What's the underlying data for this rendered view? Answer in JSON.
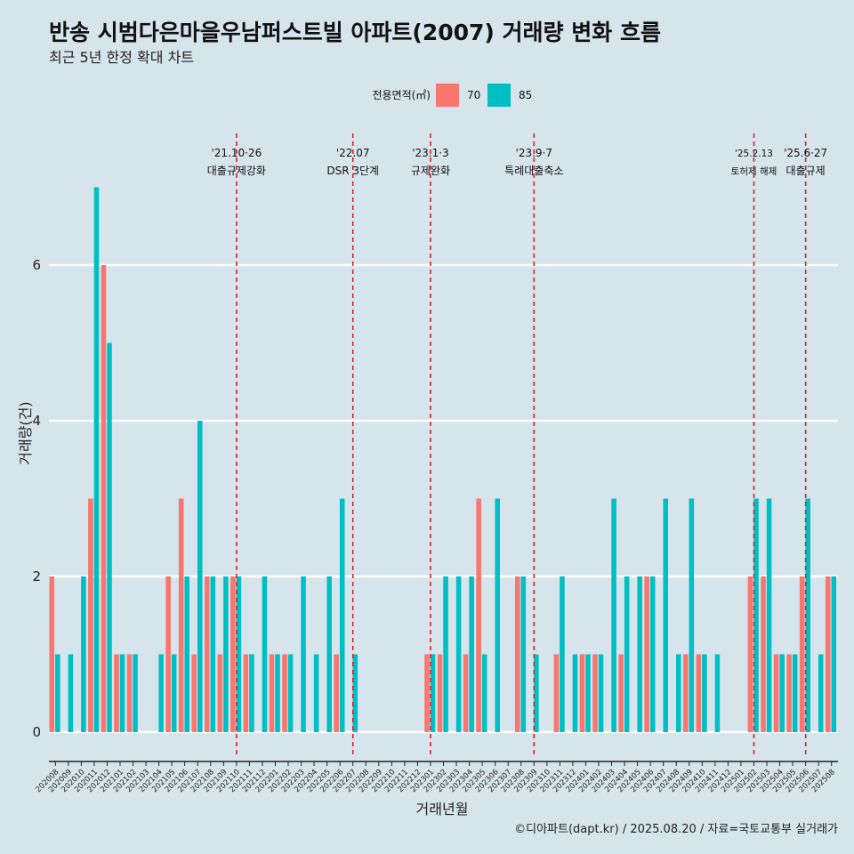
{
  "title": "반송 시범다은마을우남퍼스트빌 아파트(2007) 거래량 변화 흐름",
  "subtitle": "최근 5년 한정 확대 차트",
  "caption": "©디아파트(dapt.kr) / 2025.08.20 / 자료=국토교통부 실거래가",
  "colors": {
    "series_70": "#f8766d",
    "series_85": "#00bfc4",
    "vline": "#e8121b",
    "grid": "#ffffff",
    "background": "#d6e4ec"
  },
  "chart_data": {
    "type": "bar",
    "xlabel": "거래년월",
    "ylabel": "거래량(건)",
    "ylim": [
      -0.3,
      7.6
    ],
    "yticks": [
      0,
      2,
      4,
      6
    ],
    "grid": true,
    "legend": {
      "title": "전용면적(㎡)",
      "position": "top"
    },
    "categories": [
      "202008",
      "202009",
      "202010",
      "202011",
      "202012",
      "202101",
      "202102",
      "202103",
      "202104",
      "202105",
      "202106",
      "202107",
      "202108",
      "202109",
      "202110",
      "202111",
      "202112",
      "202201",
      "202202",
      "202203",
      "202204",
      "202205",
      "202206",
      "202207",
      "202208",
      "202209",
      "202210",
      "202211",
      "202212",
      "202301",
      "202302",
      "202303",
      "202304",
      "202305",
      "202306",
      "202307",
      "202308",
      "202309",
      "202310",
      "202311",
      "202312",
      "202401",
      "202402",
      "202403",
      "202404",
      "202405",
      "202406",
      "202407",
      "202408",
      "202409",
      "202410",
      "202411",
      "202412",
      "202501",
      "202502",
      "202503",
      "202504",
      "202505",
      "202506",
      "202507",
      "202508"
    ],
    "series": [
      {
        "name": "70",
        "values": [
          2,
          0,
          0,
          3,
          6,
          1,
          1,
          0,
          0,
          2,
          3,
          1,
          2,
          1,
          2,
          1,
          0,
          1,
          1,
          0,
          0,
          0,
          1,
          0,
          0,
          0,
          0,
          0,
          0,
          1,
          1,
          0,
          1,
          3,
          0,
          0,
          2,
          0,
          0,
          1,
          0,
          1,
          1,
          0,
          1,
          0,
          2,
          0,
          0,
          1,
          1,
          0,
          0,
          0,
          2,
          2,
          1,
          1,
          2,
          0,
          2
        ]
      },
      {
        "name": "85",
        "values": [
          1,
          1,
          2,
          7,
          5,
          1,
          1,
          0,
          1,
          1,
          2,
          4,
          2,
          2,
          2,
          1,
          2,
          1,
          1,
          2,
          1,
          2,
          3,
          1,
          0,
          0,
          0,
          0,
          0,
          1,
          2,
          2,
          2,
          1,
          3,
          0,
          2,
          1,
          0,
          2,
          1,
          1,
          1,
          3,
          2,
          2,
          2,
          3,
          1,
          3,
          1,
          1,
          0,
          0,
          3,
          3,
          1,
          1,
          3,
          1,
          2
        ]
      }
    ],
    "annotations": [
      {
        "category": "202110",
        "line1": "'21.10·26",
        "line2": "대출규제강화",
        "small": false
      },
      {
        "category": "202207",
        "line1": "'22.07",
        "line2": "DSR 3단계",
        "small": false
      },
      {
        "category": "202301",
        "line1": "'23.1·3",
        "line2": "규제완화",
        "small": false
      },
      {
        "category": "202309",
        "line1": "'23.9·7",
        "line2": "특례대출축소",
        "small": false
      },
      {
        "category": "202502",
        "line1": "'25.2.13",
        "line2": "토허제 해제",
        "small": true
      },
      {
        "category": "202506",
        "line1": "'25.6·27",
        "line2": "대출규제",
        "small": false
      }
    ]
  }
}
